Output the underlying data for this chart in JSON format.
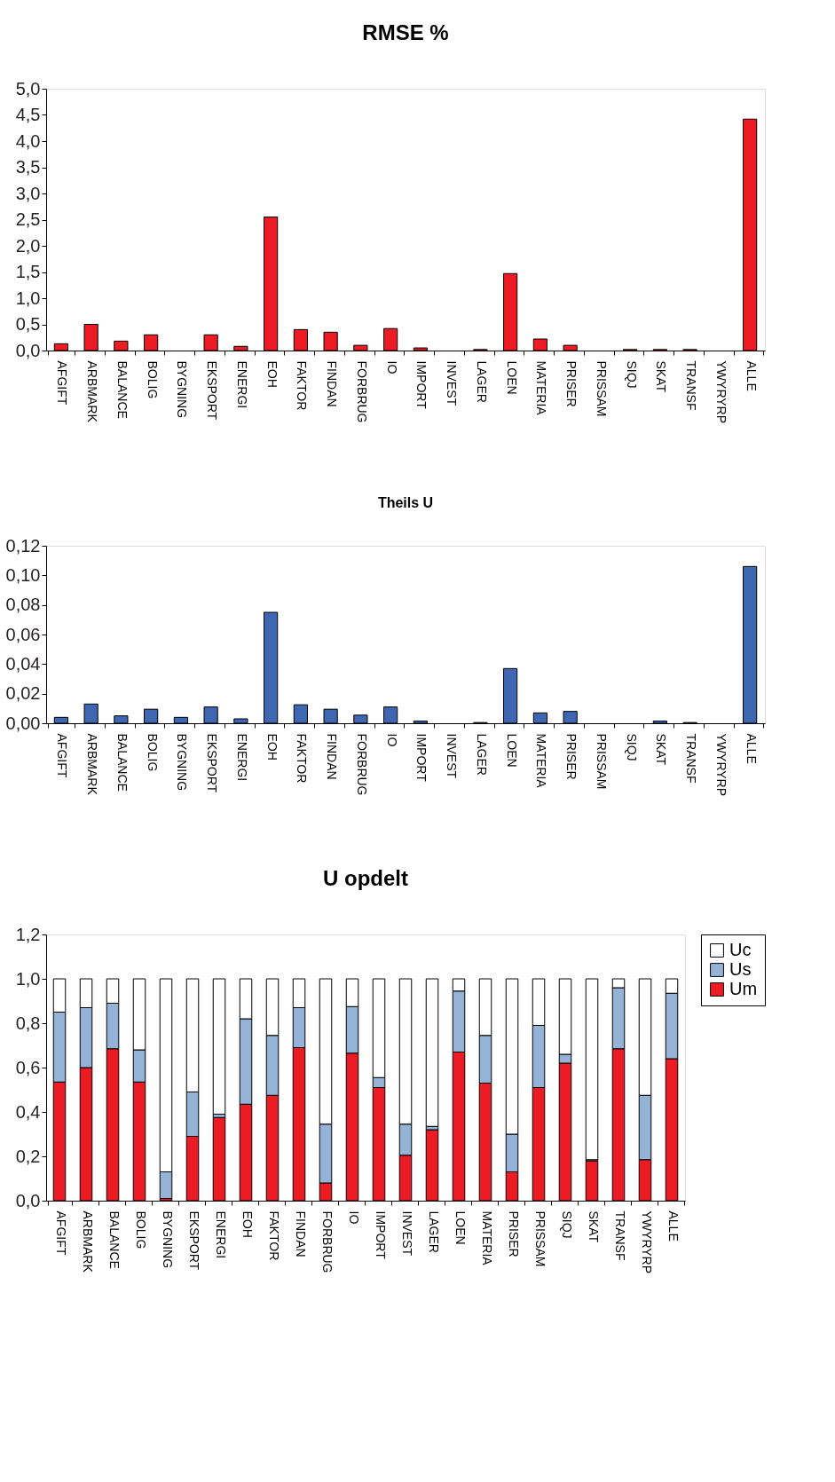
{
  "chart_data": [
    {
      "type": "bar",
      "title": "RMSE %",
      "categories": [
        "AFGIFT",
        "ARBMARK",
        "BALANCE",
        "BOLIG",
        "BYGNING",
        "EKSPORT",
        "ENERGI",
        "EOH",
        "FAKTOR",
        "FINDAN",
        "FORBRUG",
        "IO",
        "IMPORT",
        "INVEST",
        "LAGER",
        "LOEN",
        "MATERIA",
        "PRISER",
        "PRISSAM",
        "SIQJ",
        "SKAT",
        "TRANSF",
        "YWYRYRP",
        "ALLE"
      ],
      "series": [
        {
          "color": "#ed1c24",
          "values": [
            0.13,
            0.5,
            0.18,
            0.3,
            0,
            0.3,
            0.08,
            2.55,
            0.4,
            0.35,
            0.1,
            0.42,
            0.05,
            0,
            0.02,
            1.47,
            0.22,
            0.1,
            0,
            0.02,
            0.02,
            0.02,
            0,
            4.42
          ]
        }
      ],
      "ylim": [
        0,
        5
      ],
      "yticks": [
        {
          "value": 0,
          "label": "0,0"
        },
        {
          "value": 0.5,
          "label": "0,5"
        },
        {
          "value": 1,
          "label": "1,0"
        },
        {
          "value": 1.5,
          "label": "1,5"
        },
        {
          "value": 2,
          "label": "2,0"
        },
        {
          "value": 2.5,
          "label": "2,5"
        },
        {
          "value": 3,
          "label": "3,0"
        },
        {
          "value": 3.5,
          "label": "3,5"
        },
        {
          "value": 4,
          "label": "4,0"
        },
        {
          "value": 4.5,
          "label": "4,5"
        },
        {
          "value": 5,
          "label": "5,0"
        }
      ],
      "grid": false,
      "legend": false
    },
    {
      "type": "bar",
      "title": "Theils U",
      "categories": [
        "AFGIFT",
        "ARBMARK",
        "BALANCE",
        "BOLIG",
        "BYGNING",
        "EKSPORT",
        "ENERGI",
        "EOH",
        "FAKTOR",
        "FINDAN",
        "FORBRUG",
        "IO",
        "IMPORT",
        "INVEST",
        "LAGER",
        "LOEN",
        "MATERIA",
        "PRISER",
        "PRISSAM",
        "SIQJ",
        "SKAT",
        "TRANSF",
        "YWYRYRP",
        "ALLE"
      ],
      "series": [
        {
          "color": "#3f67b1",
          "values": [
            0.004,
            0.013,
            0.005,
            0.0095,
            0.004,
            0.011,
            0.003,
            0.075,
            0.0125,
            0.0095,
            0.0055,
            0.011,
            0.0015,
            0,
            0.0005,
            0.037,
            0.007,
            0.008,
            0,
            0,
            0.0015,
            0.0005,
            0,
            0.106
          ]
        }
      ],
      "ylim": [
        0,
        0.12
      ],
      "yticks": [
        {
          "value": 0,
          "label": "0,00"
        },
        {
          "value": 0.02,
          "label": "0,02"
        },
        {
          "value": 0.04,
          "label": "0,04"
        },
        {
          "value": 0.06,
          "label": "0,06"
        },
        {
          "value": 0.08,
          "label": "0,08"
        },
        {
          "value": 0.1,
          "label": "0,10"
        },
        {
          "value": 0.12,
          "label": "0,12"
        }
      ],
      "grid": false,
      "legend": false
    },
    {
      "type": "bar",
      "title": "U opdelt",
      "stacked": true,
      "categories": [
        "AFGIFT",
        "ARBMARK",
        "BALANCE",
        "BOLIG",
        "BYGNING",
        "EKSPORT",
        "ENERGI",
        "EOH",
        "FAKTOR",
        "FINDAN",
        "FORBRUG",
        "IO",
        "IMPORT",
        "INVEST",
        "LAGER",
        "LOEN",
        "MATERIA",
        "PRISER",
        "PRISSAM",
        "SIQJ",
        "SKAT",
        "TRANSF",
        "YWYRYRP",
        "ALLE"
      ],
      "series": [
        {
          "name": "Um",
          "color": "#ed1c24",
          "values": [
            0.535,
            0.6,
            0.685,
            0.535,
            0.01,
            0.29,
            0.375,
            0.435,
            0.475,
            0.69,
            0.08,
            0.665,
            0.51,
            0.205,
            0.32,
            0.67,
            0.53,
            0.13,
            0.51,
            0.62,
            0.18,
            0.685,
            0.185,
            0.64
          ]
        },
        {
          "name": "Us",
          "color": "#95b3d7",
          "values": [
            0.315,
            0.27,
            0.205,
            0.145,
            0.12,
            0.2,
            0.015,
            0.385,
            0.27,
            0.18,
            0.265,
            0.21,
            0.045,
            0.14,
            0.015,
            0.275,
            0.215,
            0.17,
            0.28,
            0.04,
            0.005,
            0.275,
            0.29,
            0.295
          ]
        },
        {
          "name": "Uc",
          "color": "#ffffff",
          "values": [
            0.15,
            0.13,
            0.11,
            0.32,
            0.87,
            0.51,
            0.61,
            0.18,
            0.255,
            0.13,
            0.655,
            0.125,
            0.445,
            0.655,
            0.665,
            0.055,
            0.255,
            0.7,
            0.21,
            0.34,
            0.815,
            0.04,
            0.525,
            0.065
          ]
        }
      ],
      "ylim": [
        0,
        1.2
      ],
      "yticks": [
        {
          "value": 0,
          "label": "0,0"
        },
        {
          "value": 0.2,
          "label": "0,2"
        },
        {
          "value": 0.4,
          "label": "0,4"
        },
        {
          "value": 0.6,
          "label": "0,6"
        },
        {
          "value": 0.8,
          "label": "0,8"
        },
        {
          "value": 1,
          "label": "1,0"
        },
        {
          "value": 1.2,
          "label": "1,2"
        }
      ],
      "grid": false,
      "legend": "right"
    }
  ]
}
